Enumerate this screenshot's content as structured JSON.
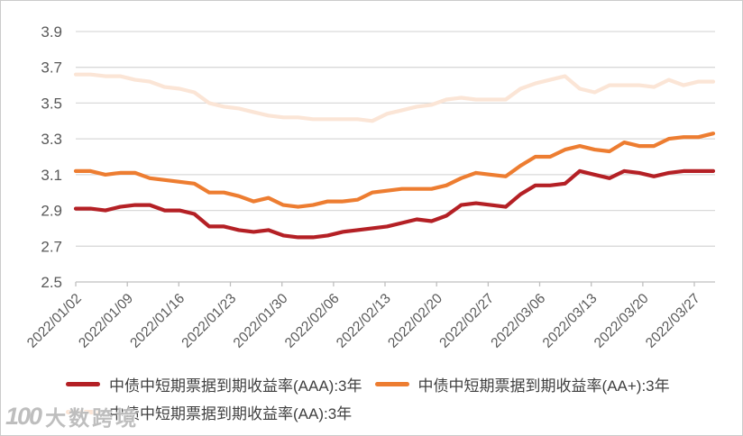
{
  "colors": {
    "grid": "#d9d9d9",
    "axis": "#bfbfbf",
    "axis_text": "#595959",
    "legend_text": "#404040",
    "series_aaa": "#b42025",
    "series_aa_plus": "#ed7d31",
    "series_aa": "#fbe5d6"
  },
  "watermark": {
    "logo": "100",
    "text": "大数跨境"
  },
  "chart_data": {
    "type": "line",
    "title": "",
    "xlabel": "",
    "ylabel": "",
    "ylim": [
      2.5,
      3.9
    ],
    "y_ticks": [
      2.5,
      2.7,
      2.9,
      3.1,
      3.3,
      3.5,
      3.7,
      3.9
    ],
    "grid": true,
    "legend_position": "bottom",
    "legend_rows": [
      [
        0,
        1
      ],
      [
        2
      ]
    ],
    "x_tick_labels": [
      "2022/01/02",
      "2022/01/09",
      "2022/01/16",
      "2022/01/23",
      "2022/01/30",
      "2022/02/06",
      "2022/02/13",
      "2022/02/20",
      "2022/02/27",
      "2022/03/06",
      "2022/03/13",
      "2022/03/20",
      "2022/03/27"
    ],
    "x": [
      "2022/01/02",
      "2022/01/04",
      "2022/01/06",
      "2022/01/08",
      "2022/01/10",
      "2022/01/12",
      "2022/01/14",
      "2022/01/16",
      "2022/01/18",
      "2022/01/20",
      "2022/01/22",
      "2022/01/24",
      "2022/01/26",
      "2022/01/28",
      "2022/01/30",
      "2022/02/01",
      "2022/02/03",
      "2022/02/05",
      "2022/02/07",
      "2022/02/09",
      "2022/02/11",
      "2022/02/13",
      "2022/02/15",
      "2022/02/17",
      "2022/02/19",
      "2022/02/21",
      "2022/02/23",
      "2022/02/25",
      "2022/02/27",
      "2022/03/01",
      "2022/03/03",
      "2022/03/05",
      "2022/03/07",
      "2022/03/09",
      "2022/03/11",
      "2022/03/13",
      "2022/03/15",
      "2022/03/17",
      "2022/03/19",
      "2022/03/21",
      "2022/03/23",
      "2022/03/25",
      "2022/03/27",
      "2022/03/29"
    ],
    "series": [
      {
        "id": "aaa",
        "name": "中债中短期票据到期收益率(AAA):3年",
        "color": "#b42025",
        "values": [
          2.91,
          2.91,
          2.9,
          2.92,
          2.93,
          2.93,
          2.9,
          2.9,
          2.88,
          2.81,
          2.81,
          2.79,
          2.78,
          2.79,
          2.76,
          2.75,
          2.75,
          2.76,
          2.78,
          2.79,
          2.8,
          2.81,
          2.83,
          2.85,
          2.84,
          2.87,
          2.93,
          2.94,
          2.93,
          2.92,
          2.99,
          3.04,
          3.04,
          3.05,
          3.12,
          3.1,
          3.08,
          3.12,
          3.11,
          3.09,
          3.11,
          3.12,
          3.12,
          3.12
        ]
      },
      {
        "id": "aa-plus",
        "name": "中债中短期票据到期收益率(AA+):3年",
        "color": "#ed7d31",
        "values": [
          3.12,
          3.12,
          3.1,
          3.11,
          3.11,
          3.08,
          3.07,
          3.06,
          3.05,
          3.0,
          3.0,
          2.98,
          2.95,
          2.97,
          2.93,
          2.92,
          2.93,
          2.95,
          2.95,
          2.96,
          3.0,
          3.01,
          3.02,
          3.02,
          3.02,
          3.04,
          3.08,
          3.11,
          3.1,
          3.09,
          3.15,
          3.2,
          3.2,
          3.24,
          3.26,
          3.24,
          3.23,
          3.28,
          3.26,
          3.26,
          3.3,
          3.31,
          3.31,
          3.33
        ]
      },
      {
        "id": "aa",
        "name": "中债中短期票据到期收益率(AA):3年",
        "color": "#fbe5d6",
        "values": [
          3.66,
          3.66,
          3.65,
          3.65,
          3.63,
          3.62,
          3.59,
          3.58,
          3.56,
          3.5,
          3.48,
          3.47,
          3.45,
          3.43,
          3.42,
          3.42,
          3.41,
          3.41,
          3.41,
          3.41,
          3.4,
          3.44,
          3.46,
          3.48,
          3.49,
          3.52,
          3.53,
          3.52,
          3.52,
          3.52,
          3.58,
          3.61,
          3.63,
          3.65,
          3.58,
          3.56,
          3.6,
          3.6,
          3.6,
          3.59,
          3.63,
          3.6,
          3.62,
          3.62
        ]
      }
    ]
  }
}
